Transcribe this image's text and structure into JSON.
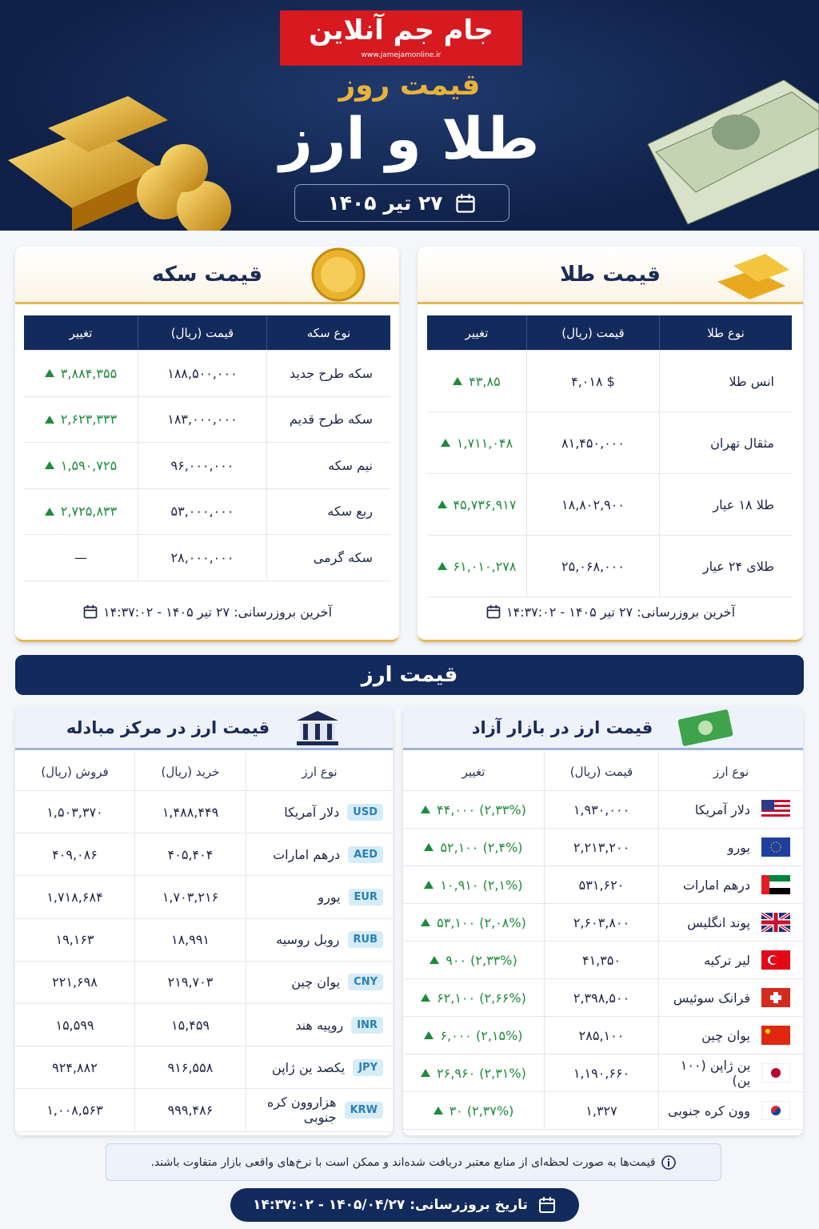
{
  "header": {
    "logo": "جام جم آنلاین",
    "logo_url": "www.jamejamonline.ir",
    "title_small": "قیمت روز",
    "title_large": "طلا و ارز",
    "date": "۲۷ تیر ۱۴۰۵"
  },
  "gold": {
    "title": "قیمت طلا",
    "columns": [
      "نوع طلا",
      "قیمت (ریال)",
      "تغییر"
    ],
    "rows": [
      [
        "انس طلا",
        "۴,۰۱۸ $",
        "۴۳,۸۵"
      ],
      [
        "مثقال تهران",
        "۸۱,۴۵۰,۰۰۰",
        "۱,۷۱۱,۰۴۸"
      ],
      [
        "طلا ۱۸ عیار",
        "۱۸,۸۰۲,۹۰۰",
        "۴۵,۷۳۶,۹۱۷"
      ],
      [
        "طلای ۲۴ عیار",
        "۲۵,۰۶۸,۰۰۰",
        "۶۱,۰۱۰,۲۷۸"
      ]
    ],
    "updated": "آخرین بروزرسانی: ۲۷ تیر ۱۴۰۵ - ۱۴:۳۷:۰۲"
  },
  "coin": {
    "title": "قیمت سکه",
    "columns": [
      "نوع سکه",
      "قیمت (ریال)",
      "تغییر"
    ],
    "rows": [
      [
        "سکه طرح جدید",
        "۱۸۸,۵۰۰,۰۰۰",
        "۳,۸۸۴,۳۵۵"
      ],
      [
        "سکه طرح قدیم",
        "۱۸۳,۰۰۰,۰۰۰",
        "۲,۶۲۳,۳۳۳"
      ],
      [
        "نیم سکه",
        "۹۶,۰۰۰,۰۰۰",
        "۱,۵۹۰,۷۲۵"
      ],
      [
        "ربع سکه",
        "۵۳,۰۰۰,۰۰۰",
        "۲,۷۲۵,۸۳۳"
      ],
      [
        "سکه گرمی",
        "۲۸,۰۰۰,۰۰۰",
        "—"
      ]
    ],
    "updated": "آخرین بروزرسانی: ۲۷ تیر ۱۴۰۵ - ۱۴:۳۷:۰۲"
  },
  "currency_section": {
    "title": "قیمت ارز"
  },
  "free_market": {
    "title": "قیمت ارز در بازار آزاد",
    "columns": [
      "نوع ارز",
      "قیمت (ریال)",
      "تغییر"
    ],
    "rows": [
      [
        "دلار آمریکا",
        "۱,۹۳۰,۰۰۰",
        "۴۴,۰۰۰ (۲,۳۳%)"
      ],
      [
        "یورو",
        "۲,۲۱۳,۲۰۰",
        "۵۲,۱۰۰ (۲,۴%)"
      ],
      [
        "درهم امارات",
        "۵۳۱,۶۲۰",
        "۱۰,۹۱۰ (۲,۱%)"
      ],
      [
        "پوند انگلیس",
        "۲,۶۰۳,۸۰۰",
        "۵۳,۱۰۰ (۲,۰۸%)"
      ],
      [
        "لیر ترکیه",
        "۴۱,۳۵۰",
        "۹۰۰ (۲,۳۳%)"
      ],
      [
        "فرانک سوئیس",
        "۲,۳۹۸,۵۰۰",
        "۶۲,۱۰۰ (۲,۶۶%)"
      ],
      [
        "یوان چین",
        "۲۸۵,۱۰۰",
        "۶,۰۰۰ (۲,۱۵%)"
      ],
      [
        "ین ژاپن (۱۰۰ ین)",
        "۱,۱۹۰,۶۶۰",
        "۲۶,۹۶۰ (۲,۳۱%)"
      ],
      [
        "وون کره جنوبی",
        "۱,۳۲۷",
        "۳۰ (۲,۳۷%)"
      ]
    ]
  },
  "exchange_center": {
    "title": "قیمت ارز در مرکز مبادله",
    "columns": [
      "نوع ارز",
      "خرید (ریال)",
      "فروش (ریال)"
    ],
    "rows": [
      [
        "USD",
        "دلار آمریکا",
        "۱,۴۸۸,۴۴۹",
        "۱,۵۰۳,۳۷۰"
      ],
      [
        "AED",
        "درهم امارات",
        "۴۰۵,۴۰۴",
        "۴۰۹,۰۸۶"
      ],
      [
        "EUR",
        "یورو",
        "۱,۷۰۳,۲۱۶",
        "۱,۷۱۸,۶۸۴"
      ],
      [
        "RUB",
        "روبل روسیه",
        "۱۸,۹۹۱",
        "۱۹,۱۶۳"
      ],
      [
        "CNY",
        "یوان چین",
        "۲۱۹,۷۰۳",
        "۲۲۱,۶۹۸"
      ],
      [
        "INR",
        "روپیه هند",
        "۱۵,۴۵۹",
        "۱۵,۵۹۹"
      ],
      [
        "JPY",
        "یکصد ین ژاپن",
        "۹۱۶,۵۵۸",
        "۹۲۴,۸۸۲"
      ],
      [
        "KRW",
        "هزاروون کره جنوبی",
        "۹۹۹,۴۸۶",
        "۱,۰۰۸,۵۶۳"
      ]
    ]
  },
  "note": "قیمت‌ها به صورت لحظه‌ای از منابع معتبر دریافت شده‌اند و ممکن است با نرخ‌های واقعی بازار متفاوت باشند.",
  "footer": {
    "updated": "تاریخ بروزرسانی: ۱۴۰۵/۰۴/۲۷ - ۱۴:۳۷:۰۲"
  }
}
